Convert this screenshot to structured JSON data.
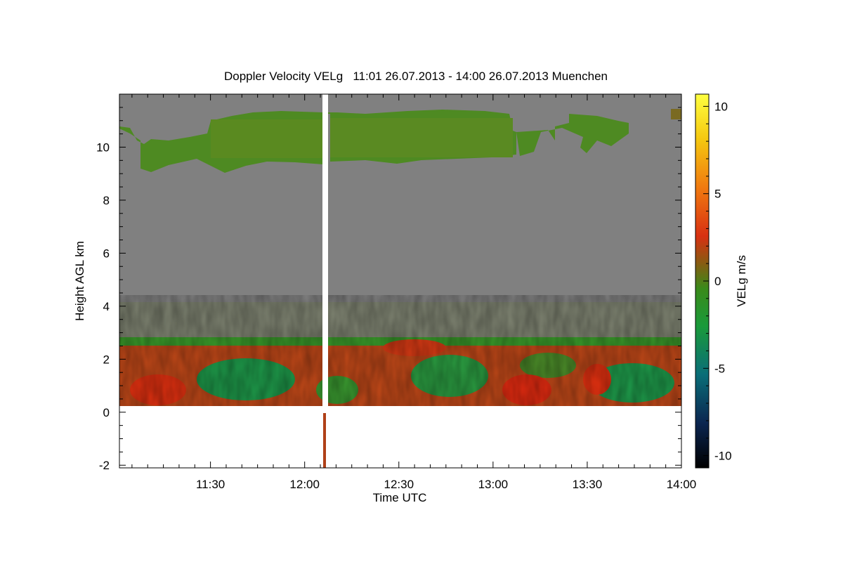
{
  "chart_data": {
    "type": "heatmap",
    "title": "Doppler Velocity VELg   11:01 26.07.2013 - 14:00 26.07.2013 Muenchen",
    "xlabel": "Time UTC",
    "ylabel": "Height AGL km",
    "x_tick_labels": [
      "11:30",
      "12:00",
      "12:30",
      "13:00",
      "13:30",
      "14:00"
    ],
    "x_tick_minutes": [
      90,
      120,
      150,
      180,
      210,
      240
    ],
    "xlim_minutes_after_1000_utc": [
      61,
      240
    ],
    "y_tick_labels": [
      "-2",
      "0",
      "2",
      "4",
      "6",
      "8",
      "10"
    ],
    "y_tick_values": [
      -2,
      0,
      2,
      4,
      6,
      8,
      10
    ],
    "ylim": [
      -2.1,
      12
    ],
    "colorbar": {
      "label": "VELg m/s",
      "tick_labels": [
        "10",
        "5",
        "0",
        "-5",
        "-10"
      ],
      "tick_values": [
        10,
        5,
        0,
        -5,
        -10
      ],
      "range": [
        -10.7,
        10.7
      ],
      "colors": [
        "#000000",
        "#0a2a55",
        "#0a7a7a",
        "#1e9e2e",
        "#3a8a1a",
        "#8a5a10",
        "#e02a10",
        "#f08a10",
        "#f5d010",
        "#ffff40"
      ]
    },
    "background_color": "#808080",
    "regions": [
      {
        "name": "cirrus",
        "color": "#4e8a22",
        "x_range": [
          61,
          227
        ],
        "y_range": [
          9.2,
          11.4
        ]
      },
      {
        "name": "boundary-layer",
        "color": "#b04a20",
        "x_range": [
          61,
          240
        ],
        "y_range": [
          0.3,
          2.8
        ]
      },
      {
        "name": "no-data",
        "color": "#ffffff",
        "x_range": [
          61,
          240
        ],
        "y_range": [
          -2.1,
          0.3
        ]
      },
      {
        "name": "data-gap",
        "color": "#ffffff",
        "x_range": [
          127,
          128.5
        ],
        "y_range": [
          -2.1,
          12
        ]
      }
    ]
  }
}
